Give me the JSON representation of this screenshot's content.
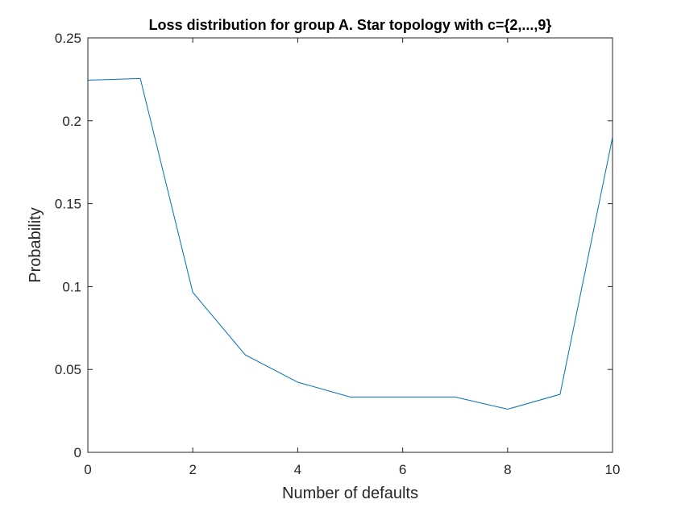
{
  "chart_data": {
    "type": "line",
    "title": "Loss distribution for group A. Star topology with c={2,...,9}",
    "xlabel": "Number of defaults",
    "ylabel": "Probability",
    "xlim": [
      0,
      10
    ],
    "ylim": [
      0,
      0.25
    ],
    "xticks": [
      0,
      2,
      4,
      6,
      8,
      10
    ],
    "xtick_labels": [
      "0",
      "2",
      "4",
      "6",
      "8",
      "10"
    ],
    "yticks": [
      0,
      0.05,
      0.1,
      0.15,
      0.2,
      0.25
    ],
    "ytick_labels": [
      "0",
      "0.05",
      "0.1",
      "0.15",
      "0.2",
      "0.25"
    ],
    "grid": false,
    "series": [
      {
        "color": "#0072BD",
        "x": [
          0,
          1,
          2,
          3,
          4,
          5,
          6,
          7,
          8,
          9,
          10
        ],
        "y": [
          0.2245,
          0.2255,
          0.0965,
          0.0588,
          0.0423,
          0.0334,
          0.0334,
          0.0334,
          0.026,
          0.035,
          0.19
        ]
      }
    ]
  }
}
